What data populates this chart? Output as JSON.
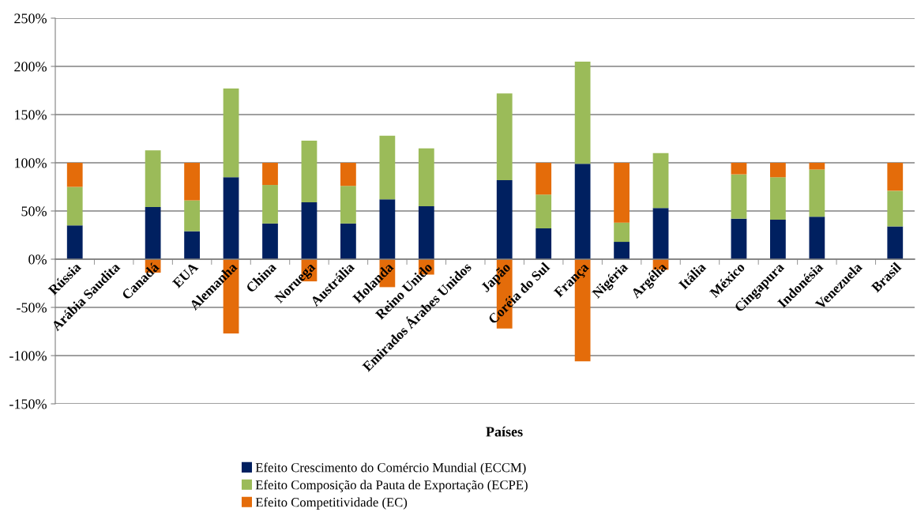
{
  "chart_data": {
    "type": "bar",
    "stacked": true,
    "xlabel": "Países",
    "categories": [
      "Rússia",
      "Arábia Saudita",
      "Canadá",
      "EUA",
      "Alemanha",
      "China",
      "Noruega",
      "Austrália",
      "Holanda",
      "Reino Unido",
      "Emirados Árabes Unidos",
      "Japão",
      "Coréia do Sul",
      "França",
      "Nigéria",
      "Argélia",
      "Itália",
      "México",
      "Cingapura",
      "Indonésia",
      "Venezuela",
      "Brasil"
    ],
    "series": [
      {
        "name": "Efeito Crescimento do Comércio Mundial (ECCM)",
        "color": "#002060",
        "values": [
          35,
          null,
          54,
          29,
          85,
          37,
          59,
          37,
          62,
          55,
          null,
          82,
          32,
          99,
          18,
          53,
          null,
          42,
          41,
          44,
          null,
          34
        ]
      },
      {
        "name": "Efeito Composição da Pauta de Exportação (ECPE)",
        "color": "#9bbb59",
        "values": [
          40,
          null,
          59,
          32,
          92,
          40,
          64,
          39,
          66,
          60,
          null,
          90,
          35,
          106,
          20,
          57,
          null,
          46,
          44,
          49,
          null,
          37
        ]
      },
      {
        "name": "Efeito Competitividade (EC)",
        "color": "#e46c0a",
        "values": [
          25,
          null,
          -14,
          39,
          -77,
          23,
          -23,
          24,
          -29,
          -16,
          null,
          -72,
          33,
          -106,
          62,
          -11,
          null,
          12,
          15,
          7,
          null,
          29
        ]
      }
    ],
    "ylim": [
      -150,
      250
    ],
    "yticks": [
      {
        "value": -150,
        "label": "-150%"
      },
      {
        "value": -100,
        "label": "-100%"
      },
      {
        "value": -50,
        "label": "-50%"
      },
      {
        "value": 0,
        "label": "0%"
      },
      {
        "value": 50,
        "label": "50%"
      },
      {
        "value": 100,
        "label": "100%"
      },
      {
        "value": 150,
        "label": "150%"
      },
      {
        "value": 200,
        "label": "200%"
      },
      {
        "value": 250,
        "label": "250%"
      }
    ],
    "grid": "y",
    "legend": "bottom"
  }
}
